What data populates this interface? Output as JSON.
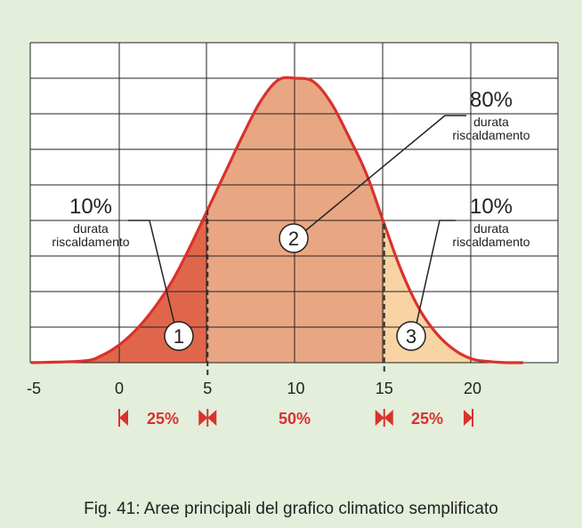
{
  "colors": {
    "background": "#e3eedb",
    "plot_background": "#ffffff",
    "grid": "#222222",
    "curve": "#d9322c",
    "zone_left": "#e0664b",
    "zone_middle": "#e8a683",
    "zone_right": "#f8d3a3",
    "accent_text": "#d9322c",
    "text": "#222222"
  },
  "chart_data": {
    "type": "area",
    "title": "",
    "xlabel": "",
    "ylabel": "",
    "xlim": [
      -5,
      23
    ],
    "ylim": [
      0,
      8
    ],
    "grid": true,
    "x_ticks": [
      "-5",
      "0",
      "5",
      "10",
      "15",
      "20"
    ],
    "x_tick_values": [
      -5,
      0,
      5,
      10,
      15,
      20
    ],
    "series": [
      {
        "x": [
          -5,
          -2,
          -1,
          0,
          1,
          2,
          3,
          4,
          5,
          6,
          7,
          8,
          9,
          10,
          11,
          12,
          13,
          14,
          15,
          16,
          17,
          18,
          19,
          20,
          21,
          22,
          23
        ],
        "y": [
          0,
          0.05,
          0.2,
          0.5,
          0.95,
          1.55,
          2.3,
          3.25,
          4.3,
          5.35,
          6.4,
          7.35,
          7.95,
          8.0,
          7.9,
          7.3,
          6.35,
          5.3,
          3.9,
          2.55,
          1.5,
          0.8,
          0.35,
          0.1,
          0.03,
          0.0,
          0.0
        ]
      }
    ],
    "zones": [
      {
        "from": -2,
        "to": 5,
        "marker": "1",
        "percent": "10%",
        "label_line1": "durata",
        "label_line2": "riscaldamento",
        "range_label": "25%"
      },
      {
        "from": 5,
        "to": 15,
        "marker": "2",
        "percent": "80%",
        "label_line1": "durata",
        "label_line2": "riscaldamento",
        "range_label": "50%"
      },
      {
        "from": 15,
        "to": 22,
        "marker": "3",
        "percent": "10%",
        "label_line1": "durata",
        "label_line2": "riscaldamento",
        "range_label": "25%"
      }
    ]
  },
  "caption": "Fig. 41: Aree principali del grafico climatico semplificato"
}
